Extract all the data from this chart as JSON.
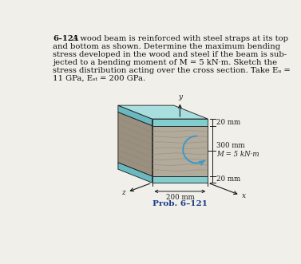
{
  "prob_label": "Prob. 6–121",
  "dim_20mm_top": "20 mm",
  "dim_300mm": "300 mm",
  "dim_M": "M = 5 kN·m",
  "dim_20mm_bot": "20 mm",
  "dim_200mm": "200 mm",
  "axis_y": "y",
  "axis_x": "x",
  "axis_z": "z",
  "bg_color": "#f0efea",
  "steel_color_front": "#82cece",
  "steel_color_top_face": "#a8dede",
  "steel_color_left": "#6ab8c0",
  "wood_color_front": "#b2aa9a",
  "wood_color_left": "#9a9080",
  "wood_color_top": "#c5bfb0",
  "line_color": "#1a1a1a",
  "prob_color": "#1a3a8a",
  "text_color": "#111111",
  "grain_color": "#908070",
  "moment_color": "#3399cc",
  "text_fontsize": 7.2,
  "prob_fontsize": 7.5,
  "dim_fontsize": 6.2
}
